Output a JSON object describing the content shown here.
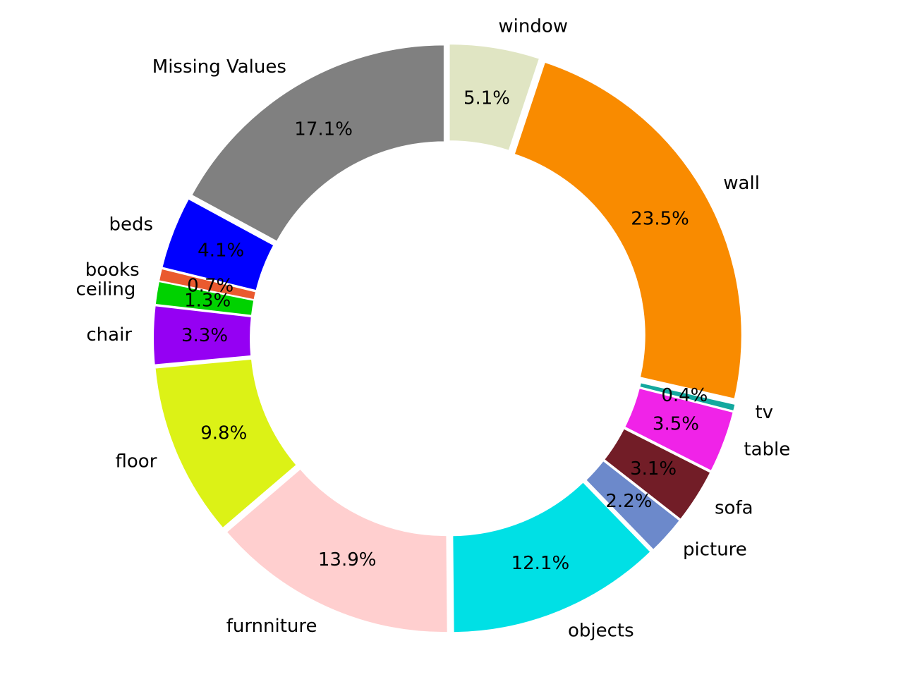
{
  "chart_data": {
    "type": "pie",
    "donut": true,
    "title": "",
    "direction": "clockwise",
    "start": "top",
    "slices": [
      {
        "label": "window",
        "value": 5.1,
        "display": "5.1%",
        "color": "#e0e5c3"
      },
      {
        "label": "wall",
        "value": 23.5,
        "display": "23.5%",
        "color": "#f98b00"
      },
      {
        "label": "tv",
        "value": 0.4,
        "display": "0.4%",
        "color": "#13a89e"
      },
      {
        "label": "table",
        "value": 3.5,
        "display": "3.5%",
        "color": "#f023e8"
      },
      {
        "label": "sofa",
        "value": 3.1,
        "display": "3.1%",
        "color": "#721d27"
      },
      {
        "label": "picture",
        "value": 2.2,
        "display": "2.2%",
        "color": "#6c89cb"
      },
      {
        "label": "objects",
        "value": 12.1,
        "display": "12.1%",
        "color": "#00e0e5"
      },
      {
        "label": "furnniture",
        "value": 13.9,
        "display": "13.9%",
        "color": "#ffcfcf"
      },
      {
        "label": "floor",
        "value": 9.8,
        "display": "9.8%",
        "color": "#dcf216"
      },
      {
        "label": "chair",
        "value": 3.3,
        "display": "3.3%",
        "color": "#9500f3"
      },
      {
        "label": "ceiling",
        "value": 1.3,
        "display": "1.3%",
        "color": "#00d200"
      },
      {
        "label": "books",
        "value": 0.7,
        "display": "0.7%",
        "color": "#ea5a2f"
      },
      {
        "label": "beds",
        "value": 4.1,
        "display": "4.1%",
        "color": "#0000ff"
      },
      {
        "label": "Missing Values",
        "value": 17.1,
        "display": "17.1%",
        "color": "#808080"
      }
    ]
  }
}
